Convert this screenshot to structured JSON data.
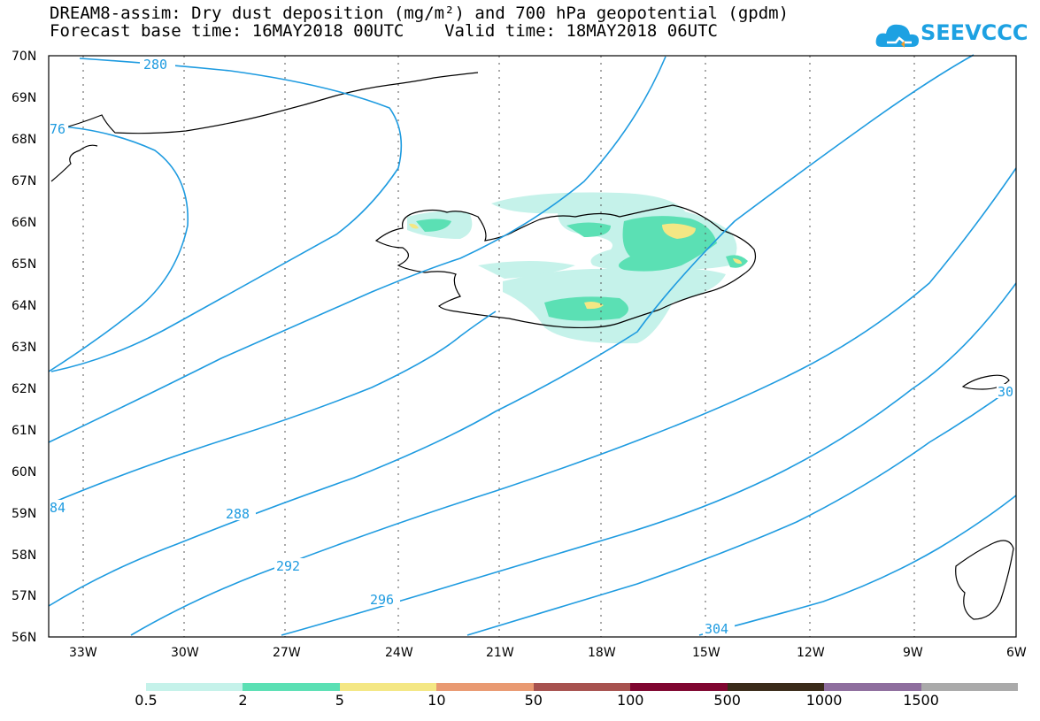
{
  "title": {
    "line1": "DREAM8-assim: Dry dust deposition (mg/m²) and 700 hPa geopotential (gpdm)",
    "line2": "Forecast base time: 16MAY2018 00UTC    Valid time: 18MAY2018 06UTC"
  },
  "logo": {
    "text": "SEEVCCC",
    "icon": "cloud-logo-icon",
    "color": "#1da1e2"
  },
  "map": {
    "lat_range": [
      56,
      70
    ],
    "lon_range": [
      -33.5,
      -6
    ],
    "lat_labels": [
      "56N",
      "57N",
      "58N",
      "59N",
      "60N",
      "61N",
      "62N",
      "63N",
      "64N",
      "65N",
      "66N",
      "67N",
      "68N",
      "69N",
      "70N"
    ],
    "lon_labels": [
      "33W",
      "30W",
      "27W",
      "24W",
      "21W",
      "18W",
      "15W",
      "12W",
      "9W",
      "6W"
    ],
    "contour_color": "#1e9be0",
    "contour_labels": [
      "280",
      "76",
      "84",
      "288",
      "292",
      "296",
      "304",
      "30"
    ]
  },
  "legend": {
    "colors": [
      "#c5f2ea",
      "#5be0b4",
      "#f4e784",
      "#e99a72",
      "#a7524f",
      "#7f0630",
      "#3a2b1a",
      "#8e6e9e",
      "#aaaaaa"
    ],
    "labels": [
      "0.5",
      "2",
      "5",
      "10",
      "50",
      "100",
      "500",
      "1000",
      "1500"
    ]
  }
}
